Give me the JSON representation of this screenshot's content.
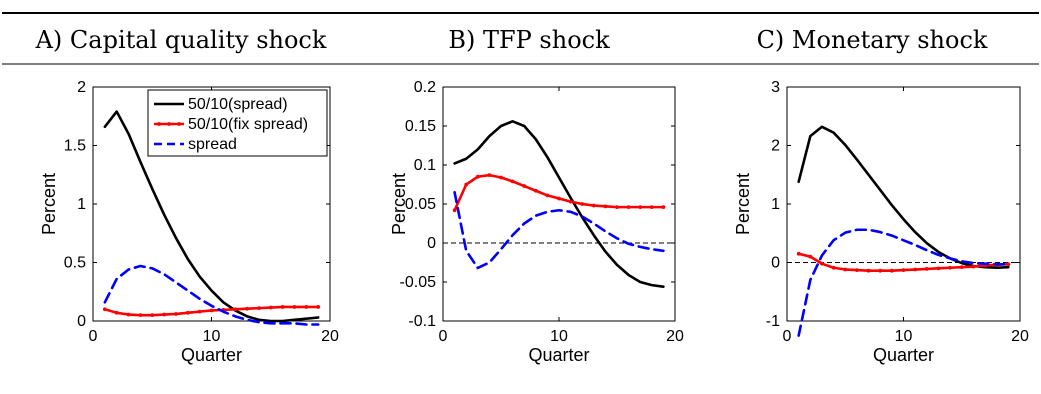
{
  "panel_titles": [
    "A) Capital quality shock",
    "B) TFP shock",
    "C) Monetary shock"
  ],
  "colors": {
    "black": "#000000",
    "red": "#ff0000",
    "blue": "#0000ff"
  },
  "chart_data": [
    {
      "type": "line",
      "title": "A) Capital quality shock",
      "xlabel": "Quarter",
      "ylabel": "Percent",
      "xlim": [
        0,
        20
      ],
      "ylim": [
        0,
        2
      ],
      "xticks": [
        0,
        10,
        20
      ],
      "yticks": [
        0,
        0.5,
        1,
        1.5,
        2
      ],
      "ytick_labels": [
        "0",
        "0.5",
        "1",
        "1.5",
        "2"
      ],
      "zero_line": true,
      "legend_location": "top-right",
      "x": [
        1,
        2,
        3,
        4,
        5,
        6,
        7,
        8,
        9,
        10,
        11,
        12,
        13,
        14,
        15,
        16,
        17,
        18,
        19
      ],
      "series": [
        {
          "name": "50/10(spread)",
          "color": "black",
          "style": "solid",
          "values": [
            1.66,
            1.79,
            1.6,
            1.36,
            1.13,
            0.91,
            0.71,
            0.53,
            0.38,
            0.26,
            0.16,
            0.09,
            0.04,
            0.01,
            0.0,
            0.0,
            0.01,
            0.02,
            0.03
          ]
        },
        {
          "name": "50/10(fix spread)",
          "color": "red",
          "style": "solid-dots",
          "values": [
            0.1,
            0.07,
            0.055,
            0.05,
            0.05,
            0.055,
            0.06,
            0.07,
            0.08,
            0.09,
            0.095,
            0.1,
            0.105,
            0.11,
            0.115,
            0.12,
            0.12,
            0.12,
            0.12
          ]
        },
        {
          "name": "spread",
          "color": "blue",
          "style": "dashed",
          "values": [
            0.16,
            0.36,
            0.44,
            0.47,
            0.45,
            0.4,
            0.33,
            0.26,
            0.19,
            0.13,
            0.08,
            0.04,
            0.01,
            -0.01,
            -0.02,
            -0.02,
            -0.02,
            -0.03,
            -0.03
          ]
        }
      ]
    },
    {
      "type": "line",
      "title": "B) TFP shock",
      "xlabel": "Quarter",
      "ylabel": "Percent",
      "xlim": [
        0,
        20
      ],
      "ylim": [
        -0.1,
        0.2
      ],
      "xticks": [
        0,
        10,
        20
      ],
      "yticks": [
        -0.1,
        -0.05,
        0,
        0.05,
        0.1,
        0.15,
        0.2
      ],
      "ytick_labels": [
        "-0.1",
        "-0.05",
        "0",
        "0.05",
        "0.1",
        "0.15",
        "0.2"
      ],
      "zero_line": true,
      "x": [
        1,
        2,
        3,
        4,
        5,
        6,
        7,
        8,
        9,
        10,
        11,
        12,
        13,
        14,
        15,
        16,
        17,
        18,
        19
      ],
      "series": [
        {
          "name": "50/10(spread)",
          "color": "black",
          "style": "solid",
          "values": [
            0.102,
            0.108,
            0.12,
            0.137,
            0.15,
            0.156,
            0.15,
            0.133,
            0.11,
            0.084,
            0.058,
            0.033,
            0.01,
            -0.011,
            -0.028,
            -0.041,
            -0.05,
            -0.054,
            -0.056
          ]
        },
        {
          "name": "50/10(fix spread)",
          "color": "red",
          "style": "solid-dots",
          "values": [
            0.042,
            0.075,
            0.085,
            0.087,
            0.084,
            0.079,
            0.073,
            0.067,
            0.061,
            0.057,
            0.053,
            0.05,
            0.048,
            0.047,
            0.046,
            0.046,
            0.046,
            0.046,
            0.046
          ]
        },
        {
          "name": "spread",
          "color": "blue",
          "style": "dashed",
          "values": [
            0.065,
            -0.01,
            -0.032,
            -0.025,
            -0.008,
            0.01,
            0.025,
            0.035,
            0.04,
            0.042,
            0.04,
            0.034,
            0.025,
            0.015,
            0.006,
            -0.001,
            -0.005,
            -0.008,
            -0.01
          ]
        }
      ]
    },
    {
      "type": "line",
      "title": "C) Monetary shock",
      "xlabel": "Quarter",
      "ylabel": "Percent",
      "xlim": [
        0,
        20
      ],
      "ylim": [
        -1,
        3
      ],
      "xticks": [
        0,
        10,
        20
      ],
      "yticks": [
        -1,
        0,
        1,
        2,
        3
      ],
      "ytick_labels": [
        "-1",
        "0",
        "1",
        "2",
        "3"
      ],
      "zero_line": true,
      "x": [
        1,
        2,
        3,
        4,
        5,
        6,
        7,
        8,
        9,
        10,
        11,
        12,
        13,
        14,
        15,
        16,
        17,
        18,
        19
      ],
      "series": [
        {
          "name": "50/10(spread)",
          "color": "black",
          "style": "solid",
          "values": [
            1.38,
            2.16,
            2.32,
            2.22,
            2.01,
            1.76,
            1.5,
            1.24,
            0.98,
            0.74,
            0.52,
            0.33,
            0.18,
            0.07,
            -0.01,
            -0.06,
            -0.08,
            -0.09,
            -0.08
          ]
        },
        {
          "name": "50/10(fix spread)",
          "color": "red",
          "style": "solid-dots",
          "values": [
            0.15,
            0.1,
            -0.02,
            -0.09,
            -0.12,
            -0.13,
            -0.14,
            -0.14,
            -0.14,
            -0.13,
            -0.12,
            -0.11,
            -0.1,
            -0.09,
            -0.08,
            -0.07,
            -0.05,
            -0.04,
            -0.03
          ]
        },
        {
          "name": "spread",
          "color": "blue",
          "style": "dashed",
          "values": [
            -1.25,
            -0.3,
            0.12,
            0.38,
            0.51,
            0.56,
            0.56,
            0.52,
            0.46,
            0.38,
            0.3,
            0.21,
            0.13,
            0.07,
            0.02,
            -0.01,
            -0.02,
            -0.03,
            -0.03
          ]
        }
      ]
    }
  ]
}
